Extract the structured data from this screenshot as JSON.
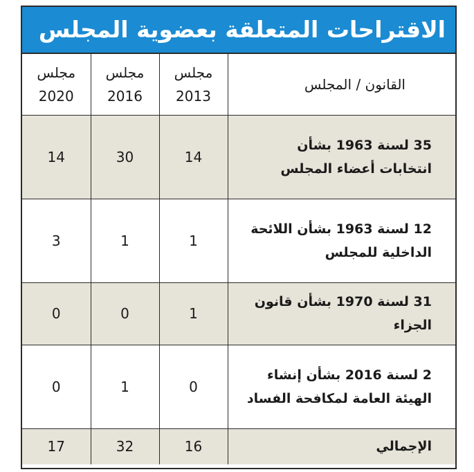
{
  "title": "الاقتراحات المتعلقة بعضوية المجلس",
  "table": {
    "header": [
      [
        "القانون / المجلس"
      ],
      [
        "مجلس",
        "2013"
      ],
      [
        "مجلس",
        "2016"
      ],
      [
        "مجلس",
        "2020"
      ]
    ],
    "rows": [
      {
        "law": [
          "35 لسنة 1963 بشأن",
          "انتخابات أعضاء المجلس"
        ],
        "values": [
          14,
          30,
          14
        ]
      },
      {
        "law": [
          "12 لسنة 1963 بشأن اللائحة",
          "الداخلية للمجلس"
        ],
        "values": [
          1,
          1,
          3
        ]
      },
      {
        "law": [
          "31 لسنة 1970 بشأن قانون",
          "الجزاء"
        ],
        "values": [
          1,
          0,
          0
        ]
      },
      {
        "law": [
          "2 لسنة 2016 بشأن إنشاء",
          "الهيئة العامة لمكافحة الفساد"
        ],
        "values": [
          0,
          1,
          0
        ]
      }
    ],
    "total": {
      "label": "الإجمالي",
      "values": [
        16,
        32,
        17
      ]
    }
  }
}
